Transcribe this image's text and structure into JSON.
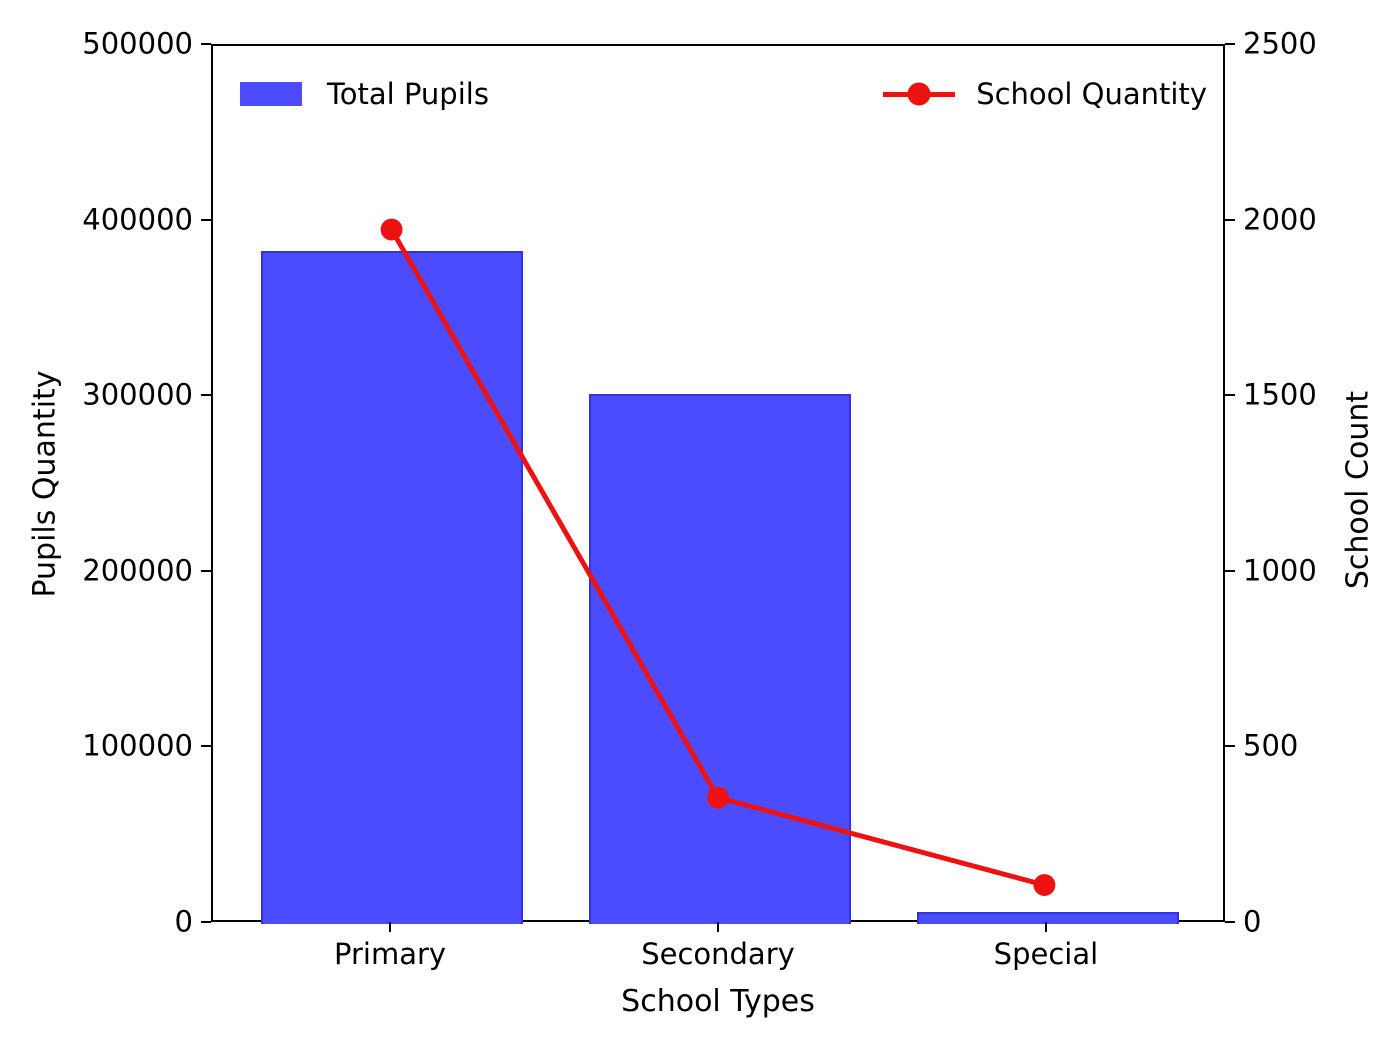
{
  "chart_data": {
    "type": "bar+line dual-axis combo",
    "categories": [
      "Primary",
      "Secondary",
      "Special"
    ],
    "series": [
      {
        "name": "Total Pupils",
        "type": "bar",
        "axis": "left",
        "color": "#4c4cff",
        "edge_color": "#3232e0",
        "values": [
          383000,
          302000,
          6800
        ]
      },
      {
        "name": "School Quantity",
        "type": "line",
        "axis": "right",
        "color": "#ee1111",
        "marker": "circle",
        "values": [
          1975,
          350,
          100
        ]
      }
    ],
    "title": "",
    "xlabel": "School Types",
    "ylabel_left": "Pupils Quantity",
    "ylabel_right": "School Count",
    "ylim_left": [
      0,
      500000
    ],
    "ylim_right": [
      0,
      2500
    ],
    "yticks_left": [
      0,
      100000,
      200000,
      300000,
      400000,
      500000
    ],
    "yticks_right": [
      0,
      500,
      1000,
      1500,
      2000,
      2500
    ],
    "grid": false,
    "legend_positions": {
      "left_series": "upper left",
      "right_series": "upper right"
    }
  }
}
